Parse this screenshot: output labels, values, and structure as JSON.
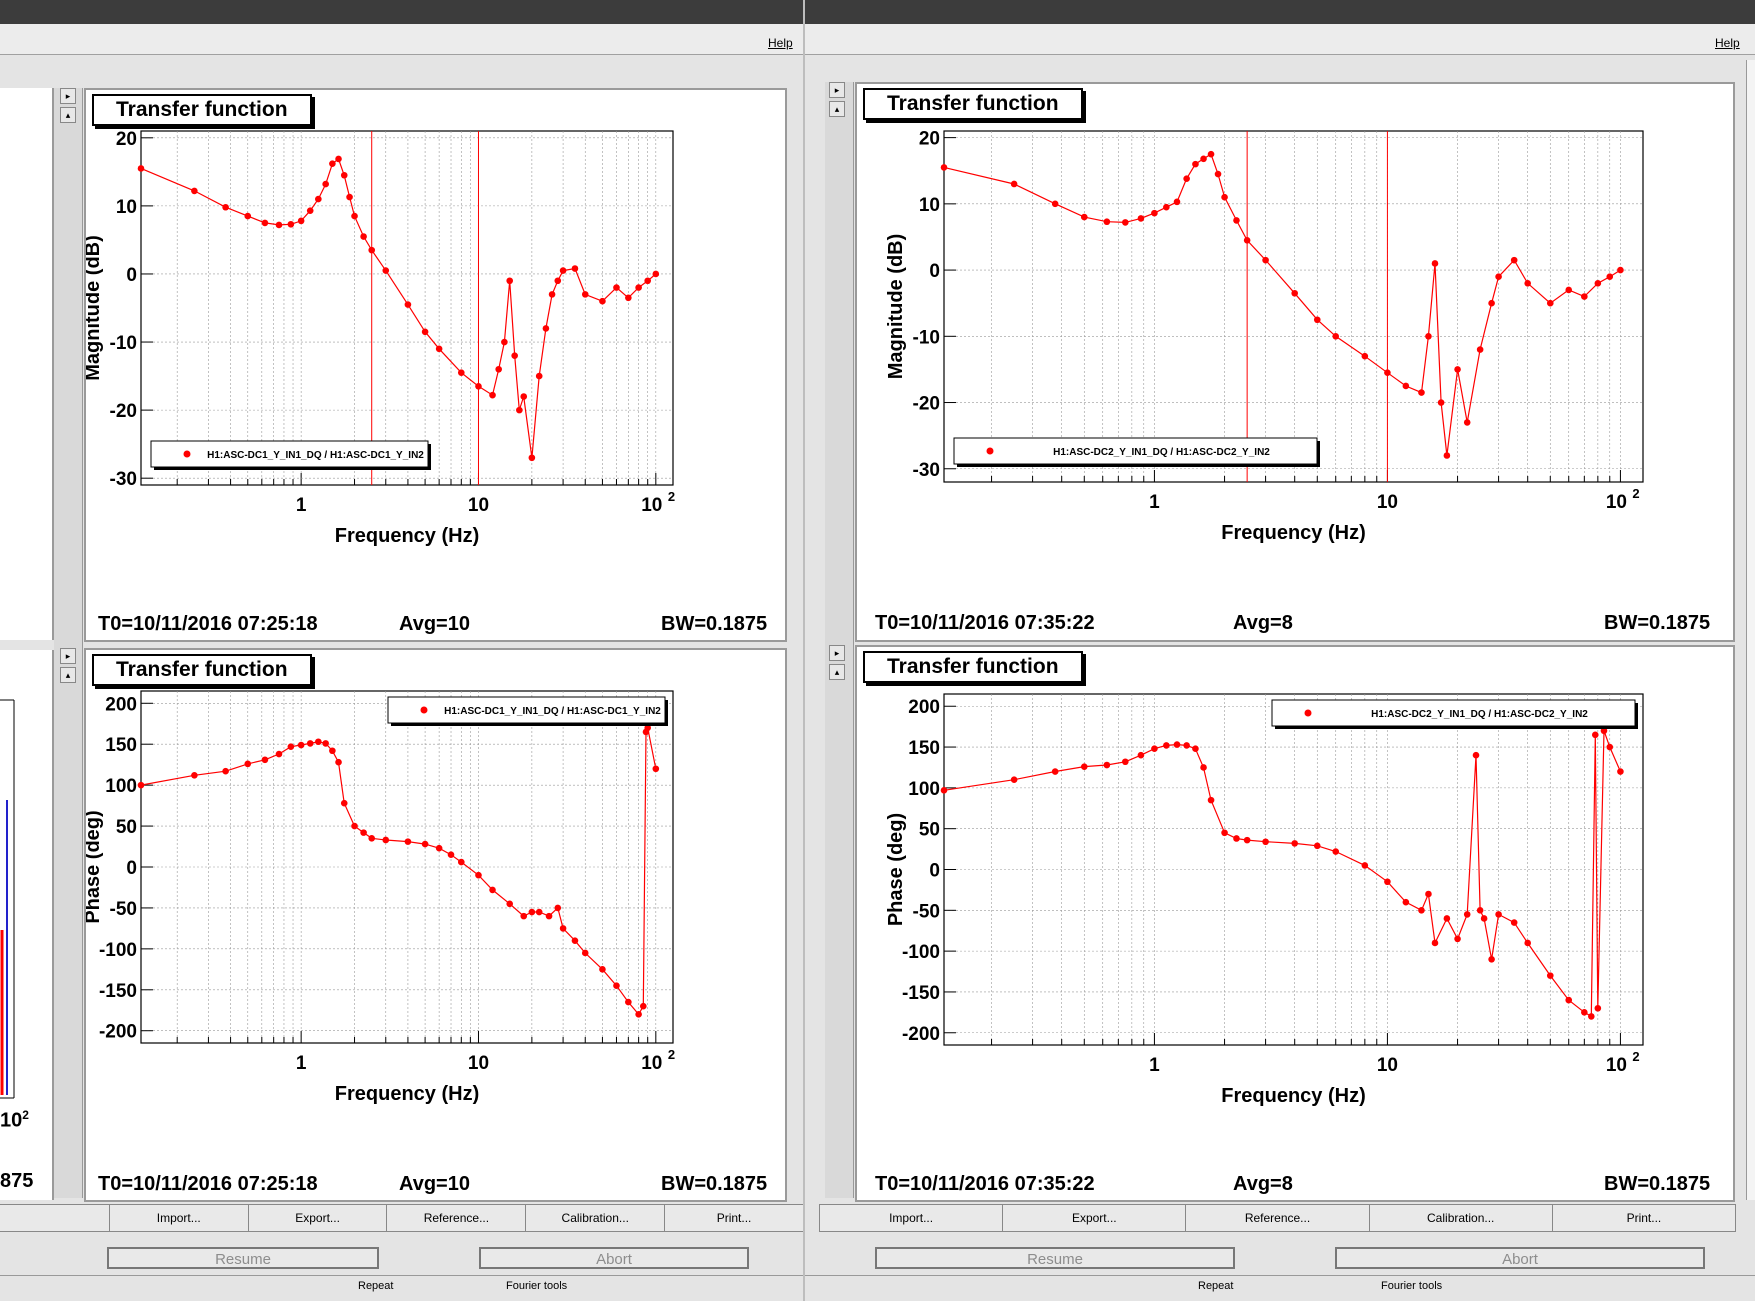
{
  "menu": {
    "help": "Help"
  },
  "toolbar": {
    "import": "Import...",
    "export": "Export...",
    "reference": "Reference...",
    "calibration": "Calibration...",
    "print": "Print..."
  },
  "controls": {
    "resume": "Resume",
    "abort": "Abort",
    "repeat": "Repeat",
    "fourier": "Fourier tools"
  },
  "left_fragment": {
    "tick": "10",
    "tick_exp": "2",
    "bw_tail": "875"
  },
  "colors": {
    "trace": "#ff0000",
    "background": "#ffffff",
    "window": "#e4e4e4"
  },
  "panels": [
    {
      "title": "Transfer function",
      "t0": "T0=10/11/2016 07:25:18",
      "avg": "Avg=10",
      "bw": "BW=0.1875"
    },
    {
      "title": "Transfer function",
      "t0": "T0=10/11/2016 07:25:18",
      "avg": "Avg=10",
      "bw": "BW=0.1875"
    },
    {
      "title": "Transfer function",
      "t0": "T0=10/11/2016 07:35:22",
      "avg": "Avg=8",
      "bw": "BW=0.1875"
    },
    {
      "title": "Transfer function",
      "t0": "T0=10/11/2016 07:35:22",
      "avg": "Avg=8",
      "bw": "BW=0.1875"
    }
  ],
  "chart_data": [
    {
      "type": "scatter",
      "xlabel": "Frequency (Hz)",
      "ylabel": "Magnitude (dB)",
      "xscale": "log",
      "xlim": [
        0.125,
        125
      ],
      "ylim": [
        -31,
        21
      ],
      "xticks": [
        "1",
        "10",
        "10^2"
      ],
      "yticks": [
        "20",
        "10",
        "0",
        "-10",
        "-20",
        "-30"
      ],
      "grid": true,
      "legend_position": "bottom-left",
      "cursors": [
        2.5,
        10
      ],
      "series": [
        {
          "name": "H1:ASC-DC1_Y_IN1_DQ / H1:ASC-DC1_Y_IN2",
          "x": [
            0.125,
            0.25,
            0.375,
            0.5,
            0.625,
            0.75,
            0.875,
            1.0,
            1.125,
            1.25,
            1.375,
            1.5,
            1.625,
            1.75,
            1.875,
            2.0,
            2.25,
            2.5,
            3,
            4,
            5,
            6,
            8,
            10,
            12,
            13,
            14,
            15,
            16,
            17,
            18,
            20,
            22,
            24,
            26,
            28,
            30,
            35,
            40,
            50,
            60,
            70,
            80,
            90,
            100
          ],
          "y": [
            15.5,
            12.2,
            9.8,
            8.5,
            7.5,
            7.2,
            7.3,
            7.8,
            9.3,
            11.0,
            13.2,
            16.2,
            16.9,
            14.5,
            11.3,
            8.5,
            5.5,
            3.5,
            0.5,
            -4.5,
            -8.5,
            -11.0,
            -14.5,
            -16.5,
            -17.8,
            -14,
            -10,
            -1,
            -12,
            -20,
            -18,
            -27,
            -15,
            -8,
            -3,
            -1,
            0.5,
            0.8,
            -3,
            -4,
            -2,
            -3.5,
            -2,
            -1,
            0
          ]
        }
      ]
    },
    {
      "type": "scatter",
      "xlabel": "Frequency (Hz)",
      "ylabel": "Phase (deg)",
      "xscale": "log",
      "xlim": [
        0.125,
        125
      ],
      "ylim": [
        -215,
        215
      ],
      "xticks": [
        "1",
        "10",
        "10^2"
      ],
      "yticks": [
        "200",
        "150",
        "100",
        "50",
        "0",
        "-50",
        "-100",
        "-150",
        "-200"
      ],
      "grid": true,
      "legend_position": "top-right",
      "series": [
        {
          "name": "H1:ASC-DC1_Y_IN1_DQ / H1:ASC-DC1_Y_IN2",
          "x": [
            0.125,
            0.25,
            0.375,
            0.5,
            0.625,
            0.75,
            0.875,
            1.0,
            1.125,
            1.25,
            1.375,
            1.5,
            1.625,
            1.75,
            2.0,
            2.25,
            2.5,
            3,
            4,
            5,
            6,
            7,
            8,
            10,
            12,
            15,
            18,
            20,
            22,
            25,
            28,
            30,
            35,
            40,
            50,
            60,
            70,
            80,
            85,
            88,
            90,
            100
          ],
          "y": [
            100,
            112,
            117,
            126,
            131,
            138,
            147,
            149,
            151,
            153,
            151,
            142,
            128,
            78,
            50,
            42,
            35,
            33,
            31,
            28,
            23,
            15,
            6,
            -10,
            -28,
            -45,
            -60,
            -55,
            -55,
            -60,
            -50,
            -75,
            -90,
            -105,
            -125,
            -145,
            -165,
            -180,
            -170,
            165,
            170,
            120
          ]
        }
      ]
    },
    {
      "type": "scatter",
      "xlabel": "Frequency (Hz)",
      "ylabel": "Magnitude (dB)",
      "xscale": "log",
      "xlim": [
        0.125,
        125
      ],
      "ylim": [
        -32,
        21
      ],
      "xticks": [
        "1",
        "10",
        "10^2"
      ],
      "yticks": [
        "20",
        "10",
        "0",
        "-10",
        "-20",
        "-30"
      ],
      "grid": true,
      "legend_position": "bottom-left",
      "cursors": [
        2.5,
        10
      ],
      "series": [
        {
          "name": "H1:ASC-DC2_Y_IN1_DQ / H1:ASC-DC2_Y_IN2",
          "x": [
            0.125,
            0.25,
            0.375,
            0.5,
            0.625,
            0.75,
            0.875,
            1.0,
            1.125,
            1.25,
            1.375,
            1.5,
            1.625,
            1.75,
            1.875,
            2.0,
            2.25,
            2.5,
            3,
            4,
            5,
            6,
            8,
            10,
            12,
            14,
            15,
            16,
            17,
            18,
            20,
            22,
            25,
            28,
            30,
            35,
            40,
            50,
            60,
            70,
            80,
            90,
            100
          ],
          "y": [
            15.5,
            13,
            10,
            8,
            7.3,
            7.2,
            7.8,
            8.6,
            9.5,
            10.3,
            13.8,
            16,
            16.8,
            17.5,
            14.5,
            11,
            7.5,
            4.5,
            1.5,
            -3.5,
            -7.5,
            -10,
            -13,
            -15.5,
            -17.5,
            -18.5,
            -10,
            1,
            -20,
            -28,
            -15,
            -23,
            -12,
            -5,
            -1,
            1.5,
            -2,
            -5,
            -3,
            -4,
            -2,
            -1,
            0
          ]
        }
      ]
    },
    {
      "type": "scatter",
      "xlabel": "Frequency (Hz)",
      "ylabel": "Phase (deg)",
      "xscale": "log",
      "xlim": [
        0.125,
        125
      ],
      "ylim": [
        -215,
        215
      ],
      "xticks": [
        "1",
        "10",
        "10^2"
      ],
      "yticks": [
        "200",
        "150",
        "100",
        "50",
        "0",
        "-50",
        "-100",
        "-150",
        "-200"
      ],
      "grid": true,
      "legend_position": "top-right",
      "series": [
        {
          "name": "H1:ASC-DC2_Y_IN1_DQ / H1:ASC-DC2_Y_IN2",
          "x": [
            0.125,
            0.25,
            0.375,
            0.5,
            0.625,
            0.75,
            0.875,
            1.0,
            1.125,
            1.25,
            1.375,
            1.5,
            1.625,
            1.75,
            2.0,
            2.25,
            2.5,
            3,
            4,
            5,
            6,
            8,
            10,
            12,
            14,
            15,
            16,
            18,
            20,
            22,
            24,
            25,
            26,
            28,
            30,
            35,
            40,
            50,
            60,
            70,
            75,
            78,
            80,
            85,
            90,
            100
          ],
          "y": [
            97,
            110,
            120,
            126,
            128,
            132,
            140,
            148,
            152,
            153,
            152,
            148,
            125,
            85,
            45,
            38,
            36,
            34,
            32,
            29,
            22,
            5,
            -15,
            -40,
            -50,
            -30,
            -90,
            -60,
            -85,
            -55,
            140,
            -50,
            -60,
            -110,
            -55,
            -65,
            -90,
            -130,
            -160,
            -175,
            -180,
            165,
            -170,
            170,
            150,
            120
          ]
        }
      ]
    }
  ]
}
